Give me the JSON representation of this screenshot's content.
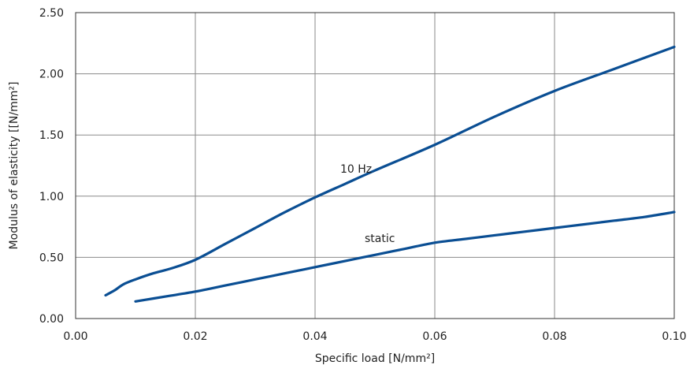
{
  "chart_data": {
    "type": "line",
    "xlabel": "Specific load [N/mm²]",
    "ylabel": "Modulus of elasticity [[N/mm²]",
    "xlim": [
      0,
      0.1
    ],
    "ylim": [
      0,
      2.5
    ],
    "x_ticks": [
      "0.00",
      "0.02",
      "0.04",
      "0.06",
      "0.08",
      "0.10"
    ],
    "y_ticks": [
      "0.00",
      "0.50",
      "1.00",
      "1.50",
      "2.00",
      "2.50"
    ],
    "grid": true,
    "line_color": "#0a4e93",
    "series": [
      {
        "name": "10 Hz",
        "x": [
          0.005,
          0.0065,
          0.008,
          0.01,
          0.013,
          0.016,
          0.02,
          0.025,
          0.03,
          0.035,
          0.04,
          0.045,
          0.05,
          0.06,
          0.07,
          0.08,
          0.09,
          0.1
        ],
        "y": [
          0.19,
          0.23,
          0.28,
          0.32,
          0.37,
          0.41,
          0.48,
          0.61,
          0.74,
          0.87,
          0.99,
          1.1,
          1.21,
          1.42,
          1.65,
          1.86,
          2.04,
          2.22
        ]
      },
      {
        "name": "static",
        "x": [
          0.01,
          0.015,
          0.02,
          0.025,
          0.03,
          0.035,
          0.04,
          0.045,
          0.05,
          0.055,
          0.06,
          0.065,
          0.07,
          0.075,
          0.08,
          0.085,
          0.09,
          0.095,
          0.1
        ],
        "y": [
          0.14,
          0.18,
          0.22,
          0.27,
          0.32,
          0.37,
          0.42,
          0.47,
          0.52,
          0.57,
          0.62,
          0.65,
          0.68,
          0.71,
          0.74,
          0.77,
          0.8,
          0.83,
          0.87
        ]
      }
    ]
  }
}
